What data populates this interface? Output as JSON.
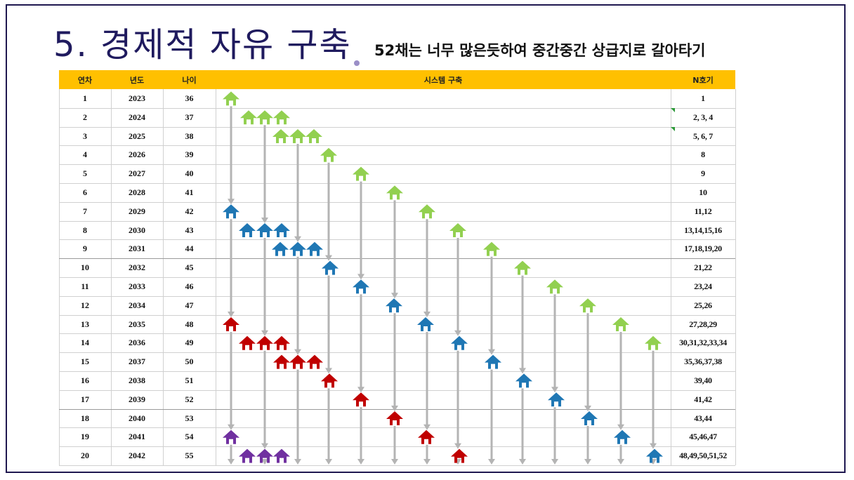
{
  "title": "5. 경제적 자유 구축",
  "subtitle": "52채는 너무 많은듯하여 중간중간 상급지로 갈아타기",
  "table": {
    "headers": {
      "year_no": "연차",
      "year": "년도",
      "age": "나이",
      "system": "시스템 구축",
      "n": "N호기"
    },
    "rows": [
      {
        "year_no": "1",
        "year": "2023",
        "age": "36",
        "n": "1"
      },
      {
        "year_no": "2",
        "year": "2024",
        "age": "37",
        "n": "2, 3, 4"
      },
      {
        "year_no": "3",
        "year": "2025",
        "age": "38",
        "n": "5, 6, 7"
      },
      {
        "year_no": "4",
        "year": "2026",
        "age": "39",
        "n": "8"
      },
      {
        "year_no": "5",
        "year": "2027",
        "age": "40",
        "n": "9"
      },
      {
        "year_no": "6",
        "year": "2028",
        "age": "41",
        "n": "10"
      },
      {
        "year_no": "7",
        "year": "2029",
        "age": "42",
        "n": "11,12"
      },
      {
        "year_no": "8",
        "year": "2030",
        "age": "43",
        "n": "13,14,15,16"
      },
      {
        "year_no": "9",
        "year": "2031",
        "age": "44",
        "n": "17,18,19,20"
      },
      {
        "year_no": "10",
        "year": "2032",
        "age": "45",
        "n": "21,22"
      },
      {
        "year_no": "11",
        "year": "2033",
        "age": "46",
        "n": "23,24"
      },
      {
        "year_no": "12",
        "year": "2034",
        "age": "47",
        "n": "25,26"
      },
      {
        "year_no": "13",
        "year": "2035",
        "age": "48",
        "n": "27,28,29"
      },
      {
        "year_no": "14",
        "year": "2036",
        "age": "49",
        "n": "30,31,32,33,34"
      },
      {
        "year_no": "15",
        "year": "2037",
        "age": "50",
        "n": "35,36,37,38"
      },
      {
        "year_no": "16",
        "year": "2038",
        "age": "51",
        "n": "39,40"
      },
      {
        "year_no": "17",
        "year": "2039",
        "age": "52",
        "n": "41,42"
      },
      {
        "year_no": "18",
        "year": "2040",
        "age": "53",
        "n": "43,44"
      },
      {
        "year_no": "19",
        "year": "2041",
        "age": "54",
        "n": "45,46,47"
      },
      {
        "year_no": "20",
        "year": "2042",
        "age": "55",
        "n": "48,49,50,51,52"
      }
    ]
  },
  "colors": {
    "header": "#ffc000",
    "gen1": "#92d050",
    "gen2": "#1f77b4",
    "gen3": "#c00000",
    "gen4": "#7030a0",
    "arrow": "#b4b4b4",
    "title": "#1f1a5e"
  },
  "icons": {
    "house": "house-icon",
    "arrow": "down-arrow-icon"
  }
}
